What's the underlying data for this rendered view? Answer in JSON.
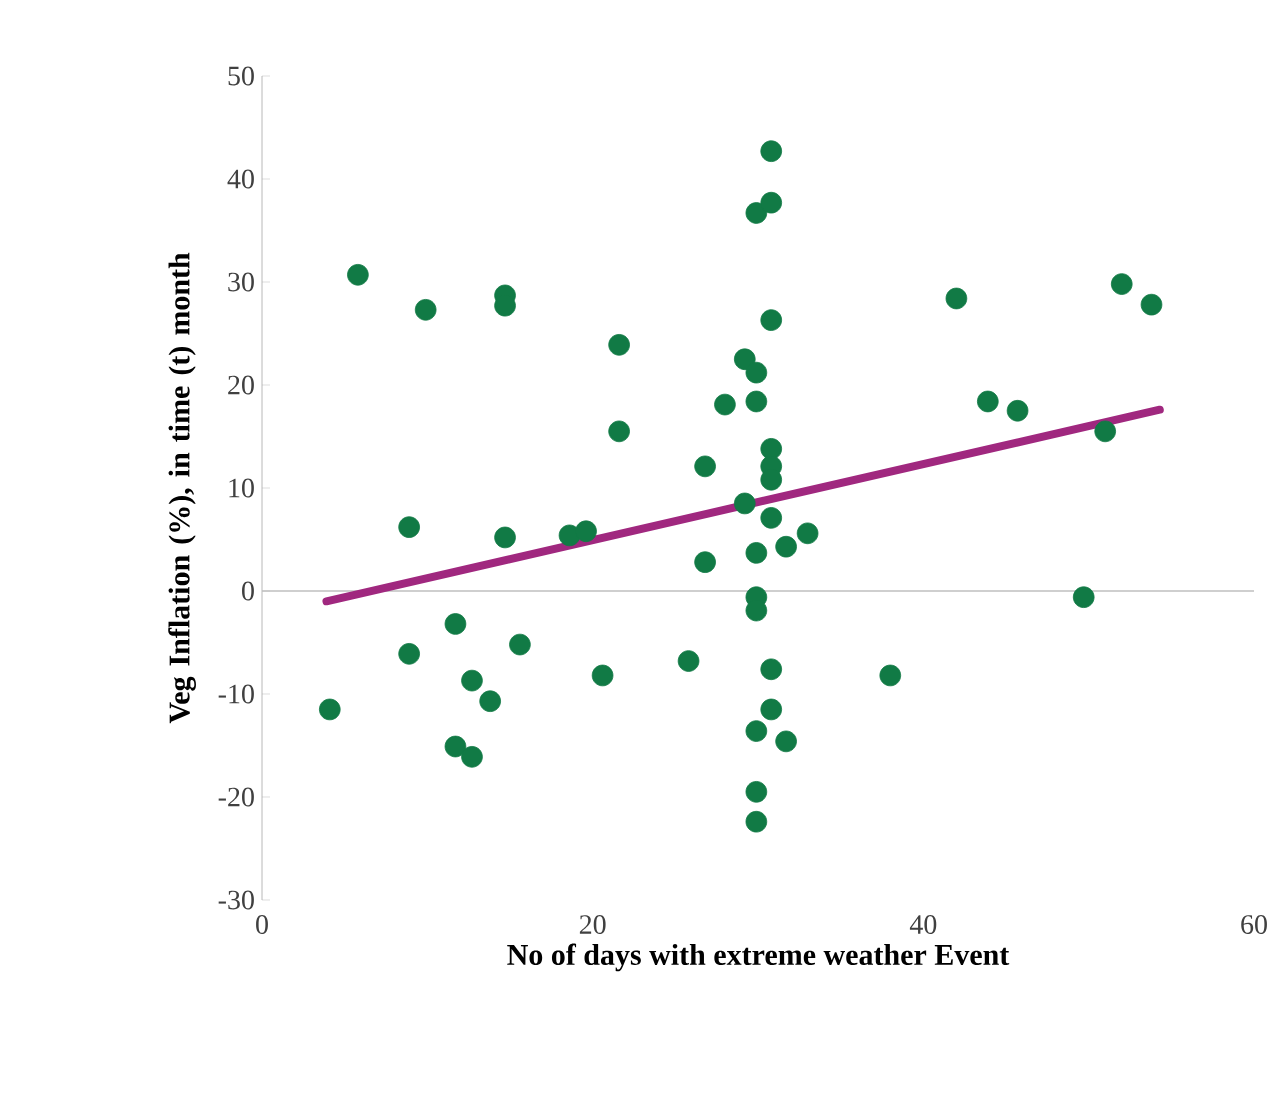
{
  "chart_data": {
    "type": "scatter",
    "xlabel": "No of days with extreme weather Event",
    "ylabel": "Veg Inflation (%), in time (t) month",
    "xlim": [
      0,
      60
    ],
    "ylim": [
      -30,
      50
    ],
    "xticks": [
      0,
      20,
      40,
      60
    ],
    "yticks": [
      -30,
      -20,
      -10,
      0,
      10,
      20,
      30,
      40,
      50
    ],
    "grid": false,
    "ref_lines": [
      {
        "axis": "y",
        "value": 0,
        "color": "#bfbfbf"
      }
    ],
    "series": [
      {
        "color": "#117a45",
        "marker": "circle",
        "x": [
          5.8,
          9.9,
          14.7,
          14.7,
          21.6,
          21.6,
          26.8,
          8.9,
          14.7,
          18.6,
          19.6,
          26.8,
          28.0,
          30.8,
          29.9,
          30.8,
          30.8,
          29.2,
          29.9,
          29.9,
          30.8,
          30.8,
          30.8,
          29.2,
          30.8,
          29.9,
          31.7,
          33.0,
          42.0,
          52.0,
          53.8,
          43.9,
          45.7,
          51.0,
          49.7,
          4.1,
          8.9,
          11.7,
          15.6,
          12.7,
          13.8,
          11.7,
          12.7,
          20.6,
          25.8,
          29.9,
          29.9,
          29.9,
          29.9,
          29.9,
          30.8,
          38.0,
          30.8,
          31.7
        ],
        "values": [
          30.7,
          27.3,
          28.7,
          27.7,
          23.9,
          15.5,
          12.1,
          6.2,
          5.2,
          5.4,
          5.8,
          2.8,
          18.1,
          42.7,
          36.7,
          37.7,
          26.3,
          22.5,
          21.2,
          18.4,
          13.8,
          12.1,
          10.8,
          8.5,
          7.1,
          3.7,
          4.3,
          5.6,
          28.4,
          29.8,
          27.8,
          18.4,
          17.5,
          15.5,
          -0.6,
          -11.5,
          -6.1,
          -3.2,
          -5.2,
          -8.7,
          -10.7,
          -15.1,
          -16.1,
          -8.2,
          -6.8,
          -0.6,
          -1.9,
          -13.6,
          -19.5,
          -22.4,
          -7.6,
          -8.2,
          -11.5,
          -14.6
        ]
      },
      {
        "type": "line",
        "color": "#a0287f",
        "marker": "none",
        "x": [
          3.9,
          54.3
        ],
        "values": [
          -1.0,
          17.6
        ]
      }
    ]
  }
}
